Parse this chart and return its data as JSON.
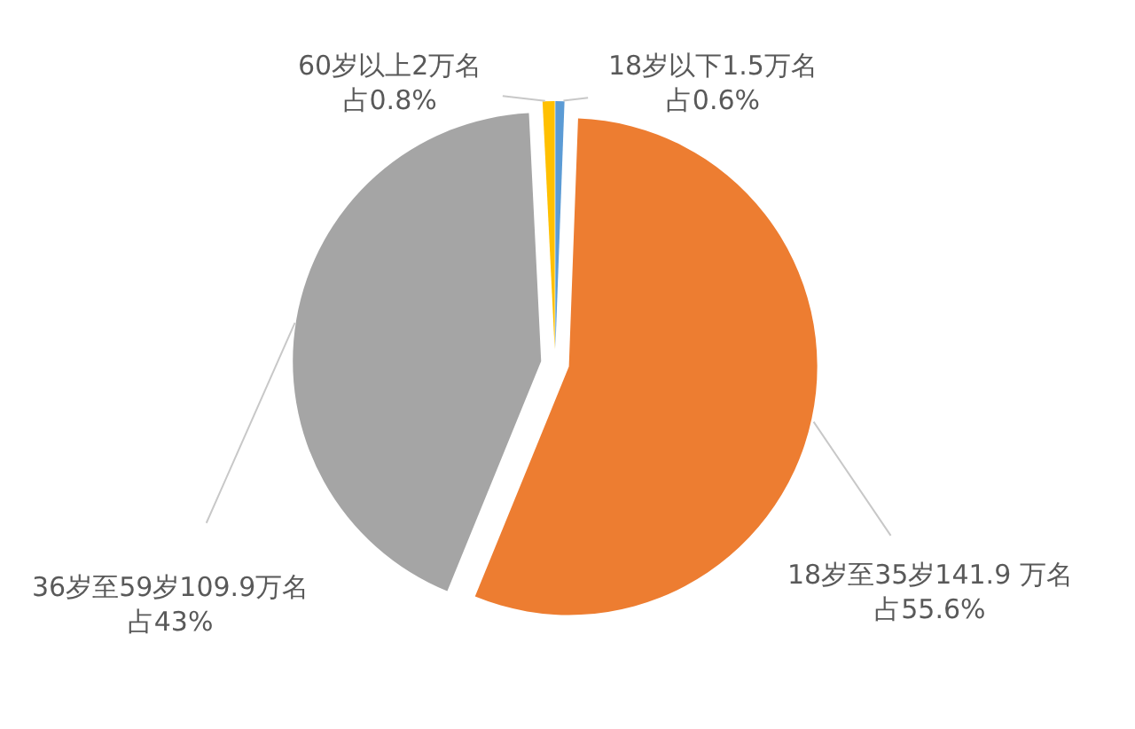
{
  "chart_data": {
    "type": "pie",
    "categories": [
      "18岁以下1.5万名占0.6%",
      "18岁至35岁141.9 万名占55.6%",
      "36岁至59岁109.9万名占43%",
      "60岁以上2万名占0.8%"
    ],
    "values": [
      1.5,
      141.9,
      109.9,
      2
    ],
    "colors": [
      "#5b9bd5",
      "#ed7d31",
      "#a5a5a5",
      "#ffc000"
    ]
  }
}
